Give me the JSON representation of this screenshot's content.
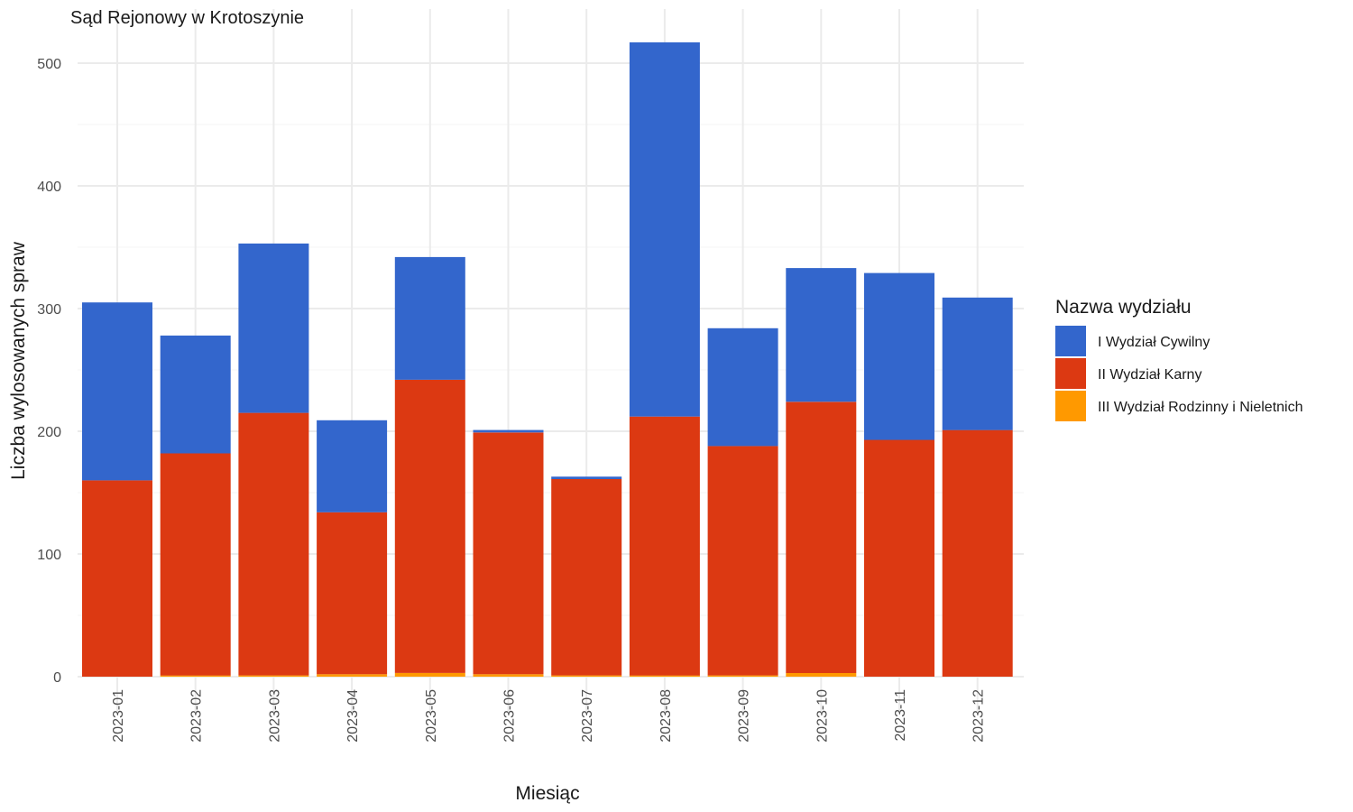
{
  "chart_data": {
    "type": "bar",
    "stacked": true,
    "title": "Sąd Rejonowy w Krotoszynie",
    "xlabel": "Miesiąc",
    "ylabel": "Liczba wylosowanych spraw",
    "ylim": [
      0,
      530
    ],
    "yticks": [
      0,
      100,
      200,
      300,
      400,
      500
    ],
    "grid": true,
    "legend_position": "right",
    "legend_title": "Nazwa wydziału",
    "categories": [
      "2023-01",
      "2023-02",
      "2023-03",
      "2023-04",
      "2023-05",
      "2023-06",
      "2023-07",
      "2023-08",
      "2023-09",
      "2023-10",
      "2023-11",
      "2023-12"
    ],
    "series": [
      {
        "name": "III Wydział Rodzinny i Nieletnich",
        "color": "#FF9900",
        "values": [
          0,
          1,
          1,
          2,
          3,
          2,
          1,
          1,
          1,
          3,
          0,
          0
        ]
      },
      {
        "name": "II Wydział Karny",
        "color": "#DC3912",
        "values": [
          160,
          181,
          214,
          132,
          239,
          197,
          160,
          211,
          187,
          221,
          193,
          201
        ]
      },
      {
        "name": "I Wydział Cywilny",
        "color": "#3366CC",
        "values": [
          145,
          96,
          138,
          75,
          100,
          2,
          2,
          305,
          96,
          109,
          136,
          108
        ]
      }
    ],
    "legend_order": [
      "I Wydział Cywilny",
      "II Wydział Karny",
      "III Wydział Rodzinny i Nieletnich"
    ]
  }
}
